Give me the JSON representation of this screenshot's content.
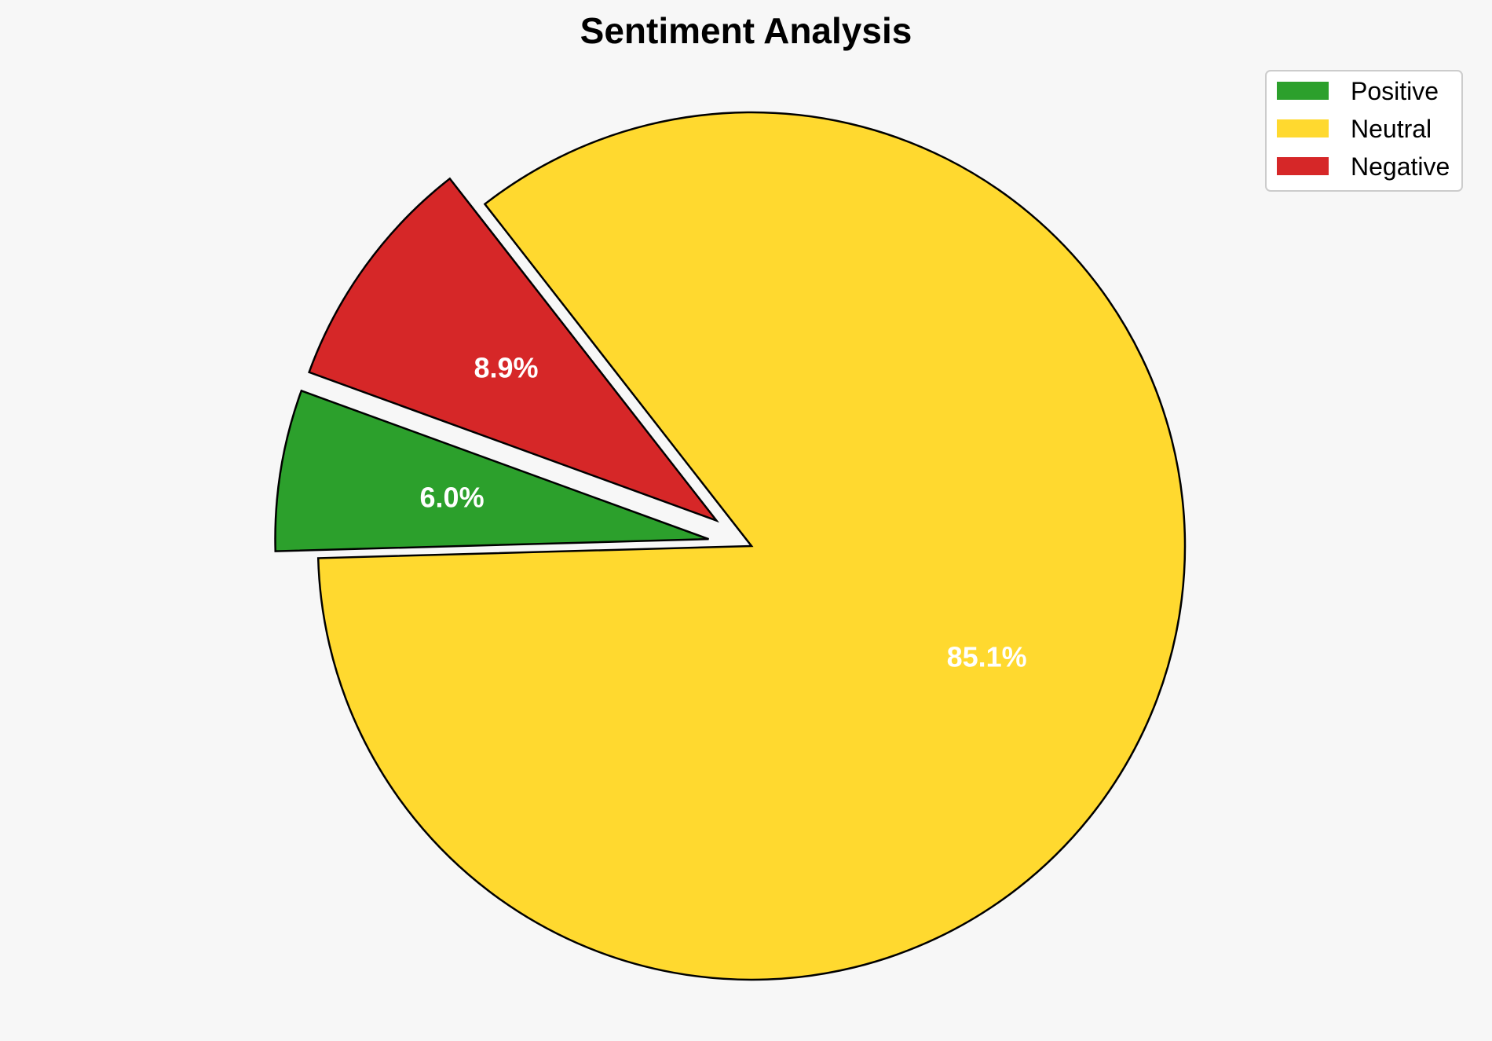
{
  "chart_data": {
    "type": "pie",
    "title": "Sentiment Analysis",
    "slices": [
      {
        "label": "Positive",
        "value": 6.0,
        "display": "6.0%",
        "color": "#2ca02c",
        "exploded": true
      },
      {
        "label": "Neutral",
        "value": 85.1,
        "display": "85.1%",
        "color": "#ffd92f",
        "exploded": false
      },
      {
        "label": "Negative",
        "value": 8.9,
        "display": "8.9%",
        "color": "#d62728",
        "exploded": true
      }
    ],
    "legend_position": "top-right"
  }
}
